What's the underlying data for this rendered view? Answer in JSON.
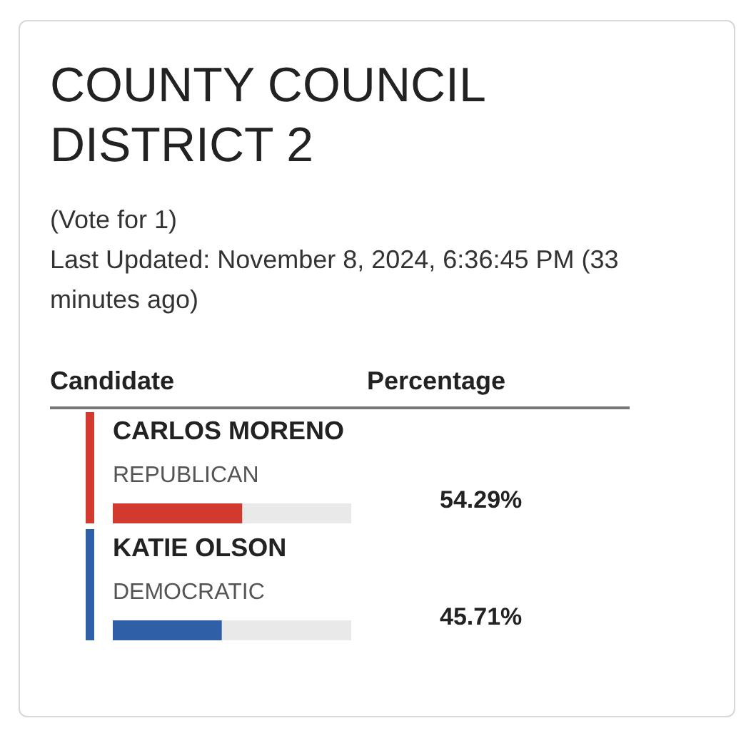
{
  "chart_data": {
    "type": "bar",
    "orientation": "horizontal",
    "title": "COUNTY COUNCIL DISTRICT 2",
    "subtitle": "(Vote for 1)\nLast Updated: November 8, 2024, 6:36:45 PM (33 minutes ago)",
    "ylabel": "Candidate",
    "xlabel": "Percentage",
    "categories": [
      "CARLOS MORENO",
      "KATIE OLSON"
    ],
    "values": [
      54.29,
      45.71
    ],
    "colors": [
      "#d23a2f",
      "#2f5fa6"
    ],
    "xlim": [
      0,
      100
    ],
    "value_labels": [
      "54.29%",
      "45.71%"
    ],
    "annotations": [
      "REPUBLICAN",
      "DEMOCRATIC"
    ],
    "tick_labels": false
  }
}
